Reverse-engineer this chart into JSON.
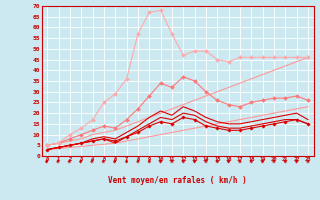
{
  "bg_color": "#cce8f0",
  "grid_color": "#ffffff",
  "x_label": "Vent moyen/en rafales ( km/h )",
  "x_ticks": [
    0,
    1,
    2,
    3,
    4,
    5,
    6,
    7,
    8,
    9,
    10,
    11,
    12,
    13,
    14,
    15,
    16,
    17,
    18,
    19,
    20,
    21,
    22,
    23
  ],
  "y_ticks": [
    0,
    5,
    10,
    15,
    20,
    25,
    30,
    35,
    40,
    45,
    50,
    55,
    60,
    65,
    70
  ],
  "ylim": [
    0,
    70
  ],
  "xlim": [
    -0.5,
    23.5
  ],
  "lines": [
    {
      "x": [
        0,
        1,
        2,
        3,
        4,
        5,
        6,
        7,
        8,
        9,
        10,
        11,
        12,
        13,
        14,
        15,
        16,
        17,
        18,
        19,
        20,
        21,
        22,
        23
      ],
      "y": [
        3,
        3.5,
        4,
        4.5,
        5,
        5.5,
        6,
        7,
        8,
        9,
        10,
        11,
        12,
        13,
        14,
        15,
        16,
        17,
        18,
        19,
        20,
        21,
        22,
        23
      ],
      "color": "#ff9999",
      "lw": 0.8,
      "marker": null,
      "ls": "-"
    },
    {
      "x": [
        0,
        1,
        2,
        3,
        4,
        5,
        6,
        7,
        8,
        9,
        10,
        11,
        12,
        13,
        14,
        15,
        16,
        17,
        18,
        19,
        20,
        21,
        22,
        23
      ],
      "y": [
        5,
        6,
        7,
        8,
        10,
        11,
        12,
        14,
        16,
        18,
        20,
        22,
        24,
        26,
        28,
        30,
        32,
        34,
        36,
        38,
        40,
        42,
        44,
        46
      ],
      "color": "#ff9999",
      "lw": 0.8,
      "marker": null,
      "ls": "-"
    },
    {
      "x": [
        0,
        1,
        2,
        3,
        4,
        5,
        6,
        7,
        8,
        9,
        10,
        11,
        12,
        13,
        14,
        15,
        16,
        17,
        18,
        19,
        20,
        21,
        22,
        23
      ],
      "y": [
        3,
        4,
        5,
        6,
        7,
        8,
        7,
        9,
        11,
        14,
        16,
        15,
        18,
        17,
        14,
        13,
        12,
        12,
        13,
        14,
        15,
        16,
        17,
        15
      ],
      "color": "#dd0000",
      "lw": 0.8,
      "marker": "D",
      "ms": 1.8,
      "ls": "-"
    },
    {
      "x": [
        0,
        1,
        2,
        3,
        4,
        5,
        6,
        7,
        8,
        9,
        10,
        11,
        12,
        13,
        14,
        15,
        16,
        17,
        18,
        19,
        20,
        21,
        22,
        23
      ],
      "y": [
        3,
        4,
        5,
        6,
        8,
        9,
        8,
        11,
        14,
        18,
        21,
        19,
        23,
        21,
        18,
        16,
        15,
        15,
        16,
        17,
        18,
        19,
        20,
        17
      ],
      "color": "#dd0000",
      "lw": 0.8,
      "marker": null,
      "ls": "-"
    },
    {
      "x": [
        0,
        1,
        2,
        3,
        4,
        5,
        6,
        7,
        8,
        9,
        10,
        11,
        12,
        13,
        14,
        15,
        16,
        17,
        18,
        19,
        20,
        21,
        22,
        23
      ],
      "y": [
        3,
        4,
        5,
        6,
        7,
        8,
        6,
        9,
        12,
        15,
        18,
        17,
        20,
        19,
        16,
        14,
        13,
        13,
        14,
        15,
        16,
        17,
        17,
        15
      ],
      "color": "#dd0000",
      "lw": 0.8,
      "marker": null,
      "ls": "-"
    },
    {
      "x": [
        0,
        1,
        2,
        3,
        4,
        5,
        6,
        7,
        8,
        9,
        10,
        11,
        12,
        13,
        14,
        15,
        16,
        17,
        18,
        19,
        20,
        21,
        22,
        23
      ],
      "y": [
        5,
        6,
        8,
        10,
        12,
        14,
        13,
        17,
        22,
        28,
        34,
        32,
        37,
        35,
        30,
        26,
        24,
        23,
        25,
        26,
        27,
        27,
        28,
        26
      ],
      "color": "#ff7777",
      "lw": 0.8,
      "marker": "D",
      "ms": 2.0,
      "ls": "-"
    },
    {
      "x": [
        0,
        1,
        2,
        3,
        4,
        5,
        6,
        7,
        8,
        9,
        10,
        11,
        12,
        13,
        14,
        15,
        16,
        17,
        18,
        19,
        20,
        21,
        22,
        23
      ],
      "y": [
        5,
        6,
        10,
        13,
        17,
        25,
        29,
        36,
        57,
        67,
        68,
        57,
        47,
        49,
        49,
        45,
        44,
        46,
        46,
        46,
        46,
        46,
        46,
        46
      ],
      "color": "#ffaaaa",
      "lw": 0.8,
      "marker": "D",
      "ms": 2.0,
      "ls": "-"
    }
  ],
  "arrow_color": "#cc0000",
  "axis_label_color": "#cc0000",
  "tick_color": "#cc0000",
  "spine_color": "#cc0000"
}
